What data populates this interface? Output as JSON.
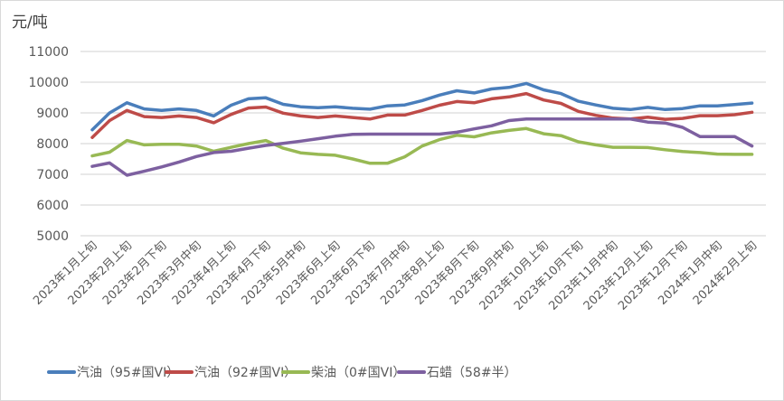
{
  "chart_data": {
    "type": "line",
    "unit_label": "元/吨",
    "ylim": [
      5000,
      11000
    ],
    "y_ticks": [
      "5000",
      "6000",
      "7000",
      "8000",
      "9000",
      "10000",
      "11000"
    ],
    "grid": true,
    "legend_placement": "bottom",
    "tick_labels": [
      "2023年1月上旬",
      "2023年2月上旬",
      "2023年2月下旬",
      "2023年3月中旬",
      "2023年4月上旬",
      "2023年4月下旬",
      "2023年5月中旬",
      "2023年6月上旬",
      "2023年6月下旬",
      "2023年7月中旬",
      "2023年8月上旬",
      "2023年8月下旬",
      "2023年9月中旬",
      "2023年10月上旬",
      "2023年10月下旬",
      "2023年11月中旬",
      "2023年12月上旬",
      "2023年12月下旬",
      "2024年1月中旬",
      "2024年2月上旬"
    ],
    "series": [
      {
        "name": "汽油（95#国VI）",
        "color": "#4a7ebb",
        "values": [
          8450,
          9000,
          9330,
          9130,
          9080,
          9130,
          9080,
          8900,
          9250,
          9460,
          9490,
          9280,
          9200,
          9170,
          9200,
          9150,
          9120,
          9230,
          9260,
          9400,
          9580,
          9720,
          9650,
          9780,
          9830,
          9960,
          9750,
          9630,
          9380,
          9260,
          9150,
          9110,
          9180,
          9110,
          9140,
          9230,
          9230,
          9270,
          9320
        ]
      },
      {
        "name": "汽油（92#国VI）",
        "color": "#be4b48",
        "values": [
          8200,
          8750,
          9080,
          8880,
          8850,
          8900,
          8850,
          8680,
          8950,
          9160,
          9190,
          8990,
          8900,
          8850,
          8900,
          8850,
          8800,
          8930,
          8930,
          9080,
          9250,
          9370,
          9330,
          9460,
          9520,
          9630,
          9420,
          9310,
          9050,
          8920,
          8830,
          8800,
          8860,
          8790,
          8820,
          8910,
          8910,
          8940,
          9020
        ]
      },
      {
        "name": "柴油（0#国VI）",
        "color": "#98b954",
        "values": [
          7600,
          7720,
          8100,
          7960,
          7980,
          7980,
          7920,
          7750,
          7880,
          8000,
          8100,
          7850,
          7700,
          7650,
          7620,
          7500,
          7360,
          7360,
          7570,
          7920,
          8130,
          8270,
          8220,
          8350,
          8430,
          8490,
          8320,
          8260,
          8060,
          7960,
          7880,
          7880,
          7870,
          7800,
          7740,
          7710,
          7660,
          7650,
          7650
        ]
      },
      {
        "name": "石蜡（58#半）",
        "color": "#7d60a0",
        "values": [
          7260,
          7370,
          6970,
          7100,
          7240,
          7400,
          7580,
          7710,
          7750,
          7850,
          7940,
          8010,
          8080,
          8160,
          8240,
          8300,
          8310,
          8310,
          8310,
          8310,
          8310,
          8370,
          8480,
          8580,
          8750,
          8800,
          8800,
          8800,
          8800,
          8800,
          8800,
          8800,
          8700,
          8670,
          8530,
          8230,
          8230,
          8230,
          7920
        ]
      }
    ]
  }
}
